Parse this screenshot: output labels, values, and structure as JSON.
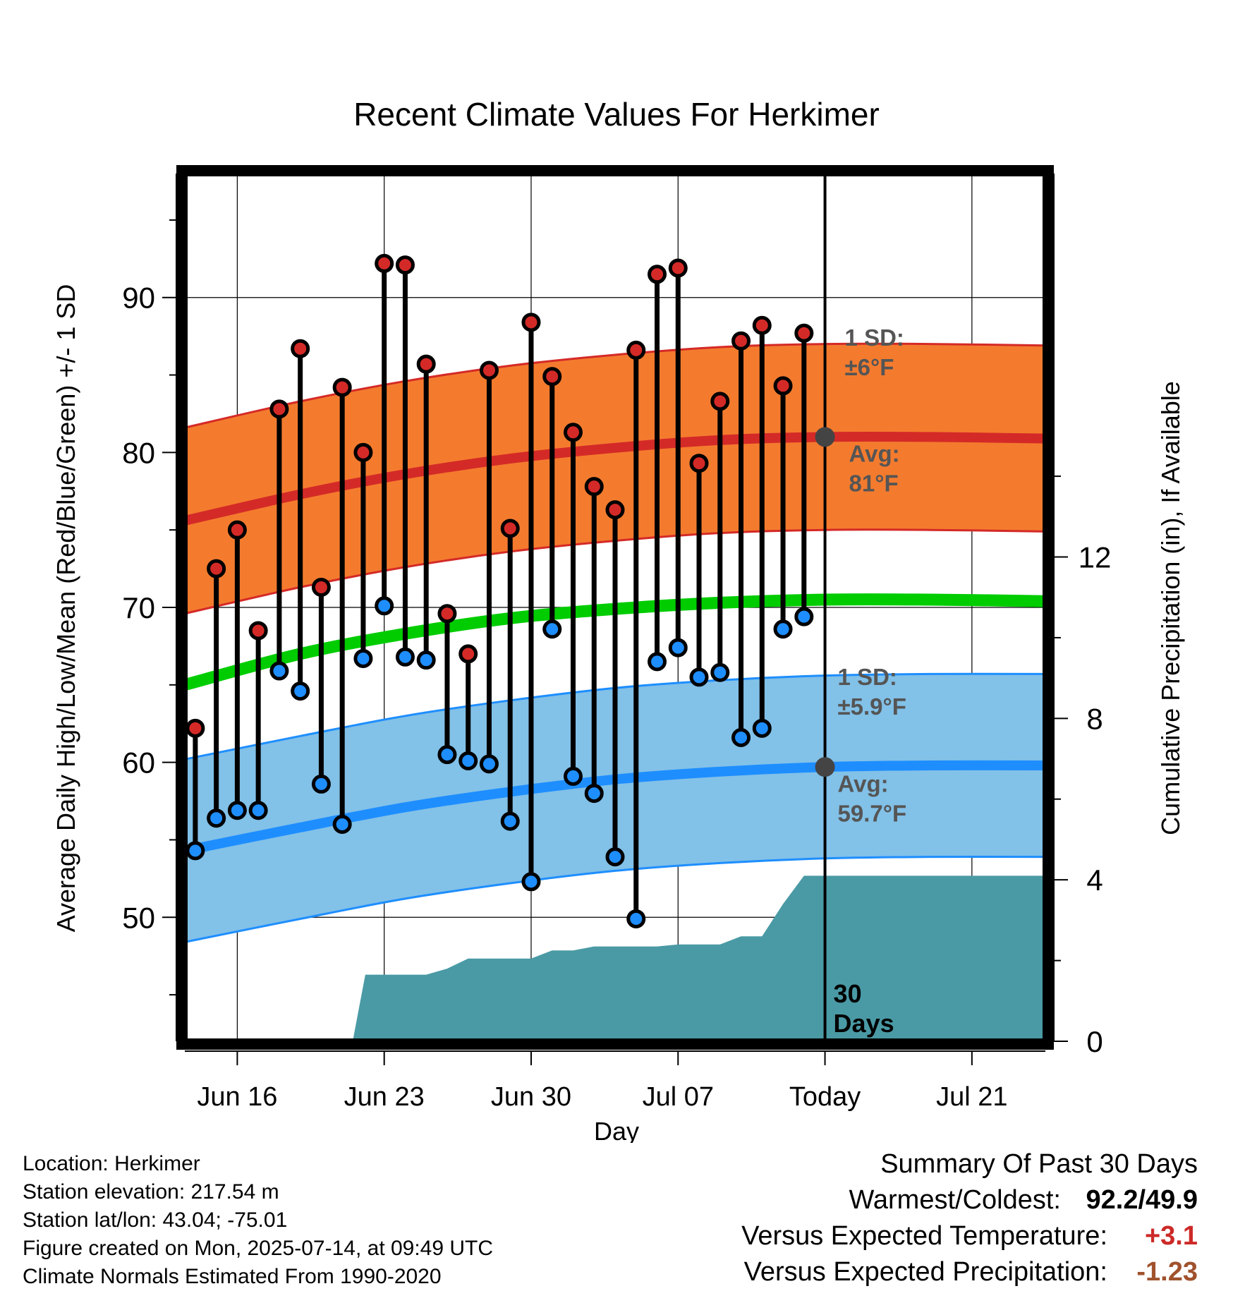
{
  "title": "Recent Climate Values For Herkimer",
  "chart_data": {
    "type": "line",
    "title": "Recent Climate Values For Herkimer",
    "xlabel": "Day",
    "ylabel": "Average Daily High/Low/Mean (Red/Blue/Green) +/- 1 SD",
    "y2label": "Cumulative Precipitation (in), If Available",
    "xlim": [
      -0.5,
      40.5
    ],
    "ylim": [
      42,
      98
    ],
    "y2lim": [
      0,
      21.5
    ],
    "y_ticks": [
      50,
      60,
      70,
      80,
      90
    ],
    "y2_ticks": [
      0,
      4,
      8,
      12
    ],
    "x_ticks": [
      {
        "x": 2,
        "label": "Jun 16"
      },
      {
        "x": 9,
        "label": "Jun 23"
      },
      {
        "x": 16,
        "label": "Jun 30"
      },
      {
        "x": 23,
        "label": "Jul 07"
      },
      {
        "x": 30,
        "label": "Today"
      },
      {
        "x": 37,
        "label": "Jul 21"
      }
    ],
    "today_x": 30,
    "day_index_note": "",
    "observed": {
      "x": [
        0,
        1,
        2,
        3,
        4,
        5,
        6,
        7,
        8,
        9,
        10,
        11,
        12,
        13,
        14,
        15,
        16,
        17,
        18,
        19,
        20,
        21,
        22,
        23,
        24,
        25,
        26,
        27,
        28,
        29
      ],
      "highs": [
        62.2,
        72.5,
        75.0,
        68.5,
        82.8,
        86.7,
        71.3,
        84.2,
        80.0,
        92.2,
        92.1,
        85.7,
        69.6,
        67.0,
        85.3,
        75.1,
        88.4,
        84.9,
        81.3,
        77.8,
        76.3,
        86.6,
        91.5,
        91.9,
        79.3,
        83.3,
        87.2,
        88.2,
        84.3,
        87.7
      ],
      "lows": [
        54.3,
        56.4,
        56.9,
        56.9,
        65.9,
        64.6,
        58.6,
        56.0,
        66.7,
        70.1,
        66.8,
        66.6,
        60.5,
        60.1,
        59.9,
        56.2,
        52.3,
        68.6,
        59.1,
        58.0,
        53.9,
        49.9,
        66.5,
        67.4,
        65.5,
        65.8,
        61.6,
        62.2,
        68.6,
        69.4
      ]
    },
    "normals": {
      "x": [
        -0.5,
        5,
        10,
        15,
        20,
        25,
        30,
        35,
        40.5
      ],
      "high_mean": [
        75.6,
        77.3,
        78.6,
        79.6,
        80.3,
        80.8,
        81.0,
        81.0,
        80.9
      ],
      "high_sd": 6,
      "low_mean": [
        54.3,
        55.8,
        57.1,
        58.1,
        58.9,
        59.4,
        59.7,
        59.8,
        59.8
      ],
      "low_sd": 5.9,
      "mean": [
        65.0,
        67.0,
        68.3,
        69.3,
        69.9,
        70.3,
        70.5,
        70.5,
        70.4
      ]
    },
    "precipitation": {
      "x": [
        7.5,
        8.1,
        11,
        12,
        13,
        16,
        17,
        18,
        19,
        22,
        23,
        25,
        26,
        27,
        28,
        29,
        40.5
      ],
      "cumulative": [
        0,
        1.65,
        1.65,
        1.8,
        2.05,
        2.05,
        2.25,
        2.25,
        2.35,
        2.35,
        2.4,
        2.4,
        2.6,
        2.6,
        3.4,
        4.1,
        4.1
      ]
    },
    "annotations": {
      "high_sd_label": [
        "1 SD:",
        "±6°F"
      ],
      "high_avg_label": [
        "Avg:",
        "81°F"
      ],
      "low_sd_label": [
        "1 SD:",
        "±5.9°F"
      ],
      "low_avg_label": [
        "Avg:",
        "59.7°F"
      ],
      "days_label": [
        "30",
        "Days"
      ]
    },
    "grid": true,
    "colors": {
      "high_band": "#f47b2e",
      "high_line": "#d42a27",
      "low_band": "#82c1e8",
      "low_line": "#1e8eff",
      "mean_line": "#00cc00",
      "precip": "#4a9aa5",
      "high_marker": "#d42a27",
      "low_marker": "#1e8eff",
      "stem": "#000000",
      "today_marker": "#444444"
    }
  },
  "footer": {
    "location": "Location: Herkimer",
    "elevation": "Station elevation: 217.54 m",
    "latlon": "Station lat/lon: 43.04; -75.01",
    "created": "Figure created on Mon, 2025-07-14, at 09:49 UTC",
    "normals": "Climate Normals Estimated From 1990-2020"
  },
  "summary": {
    "heading": "Summary Of Past 30 Days",
    "warmest_label": "Warmest/Coldest:",
    "warmest_value": "92.2/49.9",
    "temp_label": "Versus Expected Temperature:",
    "temp_value": "+3.1",
    "precip_label": "Versus Expected Precipitation:",
    "precip_value": "-1.23"
  }
}
